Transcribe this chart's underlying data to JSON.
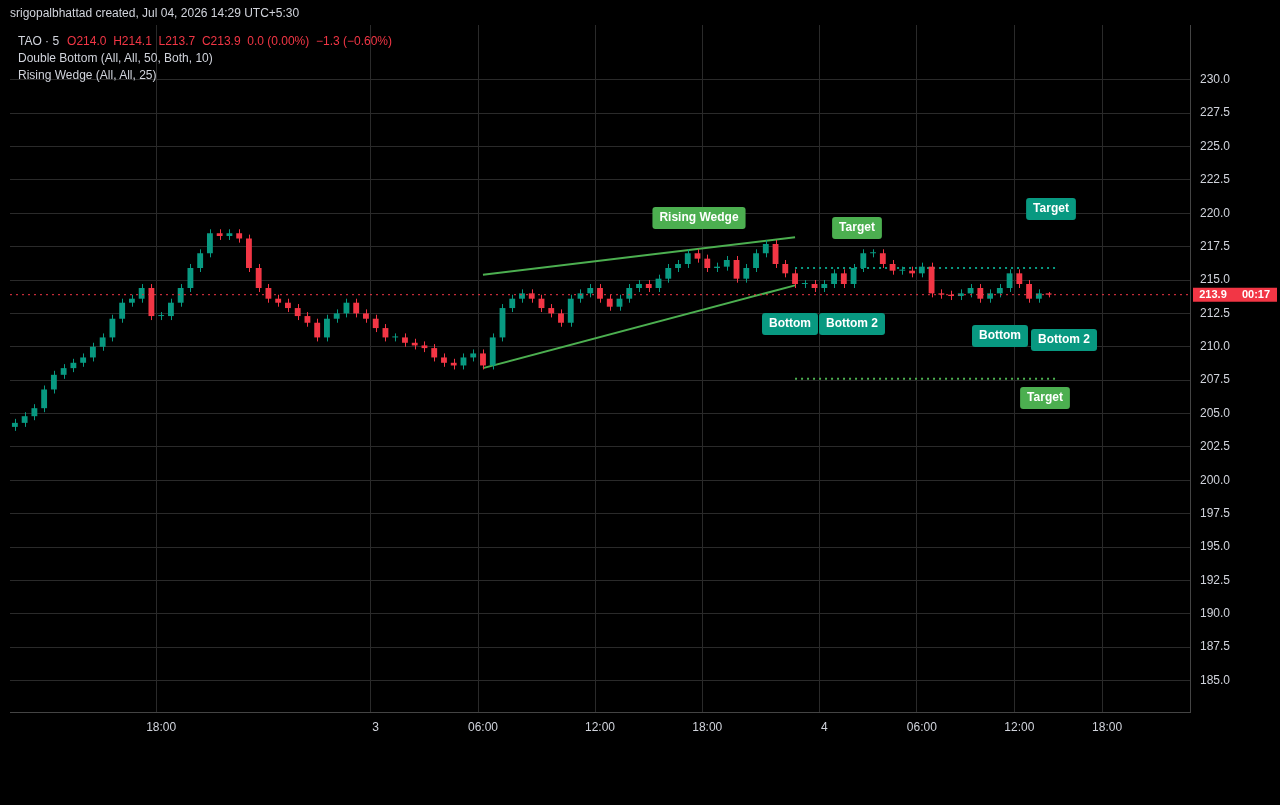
{
  "chart_data": {
    "type": "candlestick",
    "title": "TAO · 5",
    "annotations": [
      "srigopalbhattad created, Jul 04, 2026 14:29 UTC+5:30",
      "O214.0  H214.1  L213.7  C213.9  0.0 (0.00%)  −1.3 (−0.60%)",
      "Double Bottom (All, All, 50, Both, 10)",
      "Rising Wedge (All, All, 25)",
      "Rising Wedge",
      "Target",
      "Target",
      "Target",
      "Bottom",
      "Bottom 2",
      "Bottom",
      "Bottom 2",
      "00:17"
    ],
    "categories": [
      null,
      null,
      null,
      null,
      null,
      null,
      null,
      null,
      null,
      null,
      null,
      null,
      null,
      null,
      null,
      "18:00",
      null,
      null,
      null,
      null,
      null,
      null,
      null,
      null,
      null,
      null,
      null,
      null,
      null,
      null,
      null,
      null,
      null,
      null,
      null,
      null,
      null,
      "3",
      null,
      null,
      null,
      null,
      null,
      null,
      null,
      null,
      null,
      null,
      "06:00",
      null,
      null,
      null,
      null,
      null,
      null,
      null,
      null,
      null,
      null,
      null,
      "12:00",
      null,
      null,
      null,
      null,
      null,
      null,
      null,
      null,
      null,
      null,
      "18:00",
      null,
      null,
      null,
      null,
      null,
      null,
      null,
      null,
      null,
      null,
      null,
      "4",
      null,
      null,
      null,
      null,
      null,
      null,
      null,
      null,
      null,
      "06:00",
      null,
      null,
      null,
      null,
      null,
      null,
      null,
      null,
      null,
      "12:00",
      null,
      null,
      null,
      null,
      null,
      null,
      null,
      null,
      "18:00",
      null,
      null,
      null,
      null,
      null,
      null,
      null,
      null
    ],
    "ohlc": [
      [
        204.0,
        204.6,
        203.7,
        204.3
      ],
      [
        204.3,
        205.1,
        204.0,
        204.8
      ],
      [
        204.8,
        205.7,
        204.5,
        205.4
      ],
      [
        205.4,
        207.1,
        205.1,
        206.8
      ],
      [
        206.8,
        208.2,
        206.5,
        207.9
      ],
      [
        207.9,
        208.7,
        207.6,
        208.4
      ],
      [
        208.4,
        209.1,
        208.1,
        208.8
      ],
      [
        208.8,
        209.5,
        208.5,
        209.2
      ],
      [
        209.2,
        210.3,
        208.9,
        210.0
      ],
      [
        210.0,
        211.0,
        209.7,
        210.7
      ],
      [
        210.7,
        212.4,
        210.4,
        212.1
      ],
      [
        212.1,
        213.6,
        211.8,
        213.3
      ],
      [
        213.3,
        213.9,
        213.0,
        213.6
      ],
      [
        213.6,
        214.7,
        213.3,
        214.4
      ],
      [
        214.4,
        214.7,
        212.0,
        212.3
      ],
      [
        212.3,
        212.6,
        212.0,
        212.3
      ],
      [
        212.3,
        213.6,
        212.0,
        213.3
      ],
      [
        213.3,
        214.7,
        213.0,
        214.4
      ],
      [
        214.4,
        216.2,
        214.1,
        215.9
      ],
      [
        215.9,
        217.3,
        215.6,
        217.0
      ],
      [
        217.0,
        218.8,
        216.7,
        218.5
      ],
      [
        218.5,
        218.8,
        218.0,
        218.3
      ],
      [
        218.3,
        218.8,
        218.0,
        218.5
      ],
      [
        218.5,
        218.8,
        217.8,
        218.1
      ],
      [
        218.1,
        218.4,
        215.6,
        215.9
      ],
      [
        215.9,
        216.2,
        214.1,
        214.4
      ],
      [
        214.4,
        214.7,
        213.3,
        213.6
      ],
      [
        213.6,
        213.9,
        213.0,
        213.3
      ],
      [
        213.3,
        213.6,
        212.6,
        212.9
      ],
      [
        212.9,
        213.2,
        212.0,
        212.3
      ],
      [
        212.3,
        212.6,
        211.5,
        211.8
      ],
      [
        211.8,
        212.1,
        210.4,
        210.7
      ],
      [
        210.7,
        212.4,
        210.4,
        212.1
      ],
      [
        212.1,
        212.8,
        211.8,
        212.5
      ],
      [
        212.5,
        213.6,
        212.2,
        213.3
      ],
      [
        213.3,
        213.6,
        212.2,
        212.5
      ],
      [
        212.5,
        212.8,
        211.8,
        212.1
      ],
      [
        212.1,
        212.4,
        211.1,
        211.4
      ],
      [
        211.4,
        211.7,
        210.4,
        210.7
      ],
      [
        210.7,
        211.0,
        210.4,
        210.7
      ],
      [
        210.7,
        211.0,
        210.0,
        210.3
      ],
      [
        210.3,
        210.6,
        209.8,
        210.1
      ],
      [
        210.1,
        210.4,
        209.6,
        209.9
      ],
      [
        209.9,
        210.2,
        208.9,
        209.2
      ],
      [
        209.2,
        209.5,
        208.5,
        208.8
      ],
      [
        208.8,
        209.1,
        208.3,
        208.6
      ],
      [
        208.6,
        209.5,
        208.3,
        209.2
      ],
      [
        209.2,
        209.8,
        208.9,
        209.5
      ],
      [
        209.5,
        209.8,
        208.3,
        208.6
      ],
      [
        208.6,
        211.0,
        208.3,
        210.7
      ],
      [
        210.7,
        213.2,
        210.4,
        212.9
      ],
      [
        212.9,
        213.9,
        212.6,
        213.6
      ],
      [
        213.6,
        214.3,
        213.3,
        214.0
      ],
      [
        214.0,
        214.3,
        213.3,
        213.6
      ],
      [
        213.6,
        213.9,
        212.6,
        212.9
      ],
      [
        212.9,
        213.2,
        212.2,
        212.5
      ],
      [
        212.5,
        212.8,
        211.5,
        211.8
      ],
      [
        211.8,
        213.9,
        211.5,
        213.6
      ],
      [
        213.6,
        214.3,
        213.3,
        214.0
      ],
      [
        214.0,
        214.7,
        213.7,
        214.4
      ],
      [
        214.4,
        214.7,
        213.3,
        213.6
      ],
      [
        213.6,
        213.9,
        212.7,
        213.0
      ],
      [
        213.0,
        213.9,
        212.7,
        213.6
      ],
      [
        213.6,
        214.7,
        213.3,
        214.4
      ],
      [
        214.4,
        215.0,
        214.1,
        214.7
      ],
      [
        214.7,
        215.0,
        214.1,
        214.4
      ],
      [
        214.4,
        215.4,
        214.1,
        215.1
      ],
      [
        215.1,
        216.2,
        214.8,
        215.9
      ],
      [
        215.9,
        216.5,
        215.6,
        216.2
      ],
      [
        216.2,
        217.3,
        215.9,
        217.0
      ],
      [
        217.0,
        217.3,
        216.3,
        216.6
      ],
      [
        216.6,
        216.9,
        215.6,
        215.9
      ],
      [
        215.9,
        216.3,
        215.6,
        216.0
      ],
      [
        216.0,
        216.8,
        215.7,
        216.5
      ],
      [
        216.5,
        216.8,
        214.8,
        215.1
      ],
      [
        215.1,
        216.2,
        214.8,
        215.9
      ],
      [
        215.9,
        217.3,
        215.6,
        217.0
      ],
      [
        217.0,
        218.0,
        216.7,
        217.7
      ],
      [
        217.7,
        218.0,
        215.9,
        216.2
      ],
      [
        216.2,
        216.5,
        215.2,
        215.5
      ],
      [
        215.5,
        215.8,
        214.4,
        214.7
      ],
      [
        214.7,
        215.0,
        214.4,
        214.7
      ],
      [
        214.7,
        215.0,
        214.1,
        214.4
      ],
      [
        214.4,
        215.0,
        214.1,
        214.7
      ],
      [
        214.7,
        215.8,
        214.4,
        215.5
      ],
      [
        215.5,
        215.8,
        214.4,
        214.7
      ],
      [
        214.7,
        216.2,
        214.4,
        215.9
      ],
      [
        215.9,
        217.3,
        215.6,
        217.0
      ],
      [
        217.0,
        217.3,
        216.7,
        217.0
      ],
      [
        217.0,
        217.3,
        215.9,
        216.2
      ],
      [
        216.2,
        216.5,
        215.4,
        215.7
      ],
      [
        215.7,
        216.0,
        215.4,
        215.7
      ],
      [
        215.7,
        216.0,
        215.2,
        215.5
      ],
      [
        215.5,
        216.3,
        215.2,
        216.0
      ],
      [
        216.0,
        216.3,
        213.7,
        214.0
      ],
      [
        214.0,
        214.3,
        213.6,
        213.9
      ],
      [
        213.9,
        214.2,
        213.5,
        213.8
      ],
      [
        213.8,
        214.3,
        213.5,
        214.0
      ],
      [
        214.0,
        214.7,
        213.7,
        214.4
      ],
      [
        214.4,
        214.7,
        213.3,
        213.6
      ],
      [
        213.6,
        214.3,
        213.3,
        214.0
      ],
      [
        214.0,
        214.7,
        213.7,
        214.4
      ],
      [
        214.4,
        215.8,
        214.1,
        215.5
      ],
      [
        215.5,
        215.8,
        214.4,
        214.7
      ],
      [
        214.7,
        215.0,
        213.3,
        213.6
      ],
      [
        213.6,
        214.3,
        213.3,
        214.0
      ],
      [
        214.0,
        214.1,
        213.7,
        213.9
      ],
      null,
      null,
      null,
      null,
      null,
      null,
      null,
      null,
      null,
      null,
      null,
      null,
      null,
      null
    ],
    "colors": [
      "#089981",
      "#089981",
      "#089981",
      "#089981",
      "#089981",
      "#089981",
      "#089981",
      "#089981",
      "#089981",
      "#089981",
      "#089981",
      "#089981",
      "#089981",
      "#089981",
      "#f23645",
      "#089981",
      "#089981",
      "#089981",
      "#089981",
      "#089981",
      "#089981",
      "#f23645",
      "#089981",
      "#f23645",
      "#f23645",
      "#f23645",
      "#f23645",
      "#f23645",
      "#f23645",
      "#f23645",
      "#f23645",
      "#f23645",
      "#089981",
      "#089981",
      "#089981",
      "#f23645",
      "#f23645",
      "#f23645",
      "#f23645",
      "#089981",
      "#f23645",
      "#f23645",
      "#f23645",
      "#f23645",
      "#f23645",
      "#f23645",
      "#089981",
      "#089981",
      "#f23645",
      "#089981",
      "#089981",
      "#089981",
      "#089981",
      "#f23645",
      "#f23645",
      "#f23645",
      "#f23645",
      "#089981",
      "#089981",
      "#089981",
      "#f23645",
      "#f23645",
      "#089981",
      "#089981",
      "#089981",
      "#f23645",
      "#089981",
      "#089981",
      "#089981",
      "#089981",
      "#f23645",
      "#f23645",
      "#089981",
      "#089981",
      "#f23645",
      "#089981",
      "#089981",
      "#089981",
      "#f23645",
      "#f23645",
      "#f23645",
      "#089981",
      "#f23645",
      "#089981",
      "#089981",
      "#f23645",
      "#089981",
      "#089981",
      "#089981",
      "#f23645",
      "#f23645",
      "#089981",
      "#f23645",
      "#089981",
      "#f23645",
      "#f23645",
      "#f23645",
      "#089981",
      "#089981",
      "#f23645",
      "#089981",
      "#089981",
      "#089981",
      "#f23645",
      "#f23645",
      "#089981",
      "#f23645",
      null,
      null,
      null,
      null,
      null,
      null,
      null,
      null,
      null,
      null,
      null,
      null,
      null,
      null
    ],
    "series": [
      {
        "type": "line",
        "color": "#4caf50",
        "line_style": "solid",
        "values": [
          null,
          null,
          null,
          null,
          null,
          null,
          null,
          null,
          null,
          null,
          null,
          null,
          null,
          null,
          null,
          null,
          null,
          null,
          null,
          null,
          null,
          null,
          null,
          null,
          null,
          null,
          null,
          null,
          null,
          null,
          null,
          null,
          null,
          null,
          null,
          null,
          null,
          null,
          null,
          null,
          null,
          null,
          null,
          null,
          null,
          null,
          null,
          null,
          215.4,
          null,
          null,
          null,
          null,
          null,
          null,
          null,
          null,
          null,
          null,
          null,
          null,
          null,
          null,
          null,
          null,
          null,
          null,
          null,
          null,
          null,
          null,
          null,
          null,
          null,
          null,
          null,
          null,
          null,
          null,
          null,
          218.2,
          null,
          null,
          null,
          null,
          null,
          null,
          null,
          null,
          null,
          null,
          null,
          null,
          null,
          null,
          null,
          null,
          null,
          null,
          null,
          null,
          null,
          null,
          null,
          null,
          null,
          null,
          null,
          null,
          null,
          null,
          null,
          null,
          null,
          null,
          null,
          null,
          null,
          null,
          null,
          null
        ]
      },
      {
        "type": "line",
        "color": "#4caf50",
        "line_style": "solid",
        "values": [
          null,
          null,
          null,
          null,
          null,
          null,
          null,
          null,
          null,
          null,
          null,
          null,
          null,
          null,
          null,
          null,
          null,
          null,
          null,
          null,
          null,
          null,
          null,
          null,
          null,
          null,
          null,
          null,
          null,
          null,
          null,
          null,
          null,
          null,
          null,
          null,
          null,
          null,
          null,
          null,
          null,
          null,
          null,
          null,
          null,
          null,
          null,
          null,
          208.4,
          null,
          null,
          null,
          null,
          null,
          null,
          null,
          null,
          null,
          null,
          null,
          null,
          null,
          null,
          null,
          null,
          null,
          null,
          null,
          null,
          null,
          null,
          null,
          null,
          null,
          null,
          null,
          null,
          null,
          null,
          null,
          214.6,
          null,
          null,
          null,
          null,
          null,
          null,
          null,
          null,
          null,
          null,
          null,
          null,
          null,
          null,
          null,
          null,
          null,
          null,
          null,
          null,
          null,
          null,
          null,
          null,
          null,
          null,
          null,
          null,
          null,
          null,
          null,
          null,
          null,
          null,
          null,
          null,
          null,
          null,
          null,
          null
        ]
      },
      {
        "type": "line",
        "color": "#4caf50",
        "line_style": "dotted",
        "values": [
          null,
          null,
          null,
          null,
          null,
          null,
          null,
          null,
          null,
          null,
          null,
          null,
          null,
          null,
          null,
          null,
          null,
          null,
          null,
          null,
          null,
          null,
          null,
          null,
          null,
          null,
          null,
          null,
          null,
          null,
          null,
          null,
          null,
          null,
          null,
          null,
          null,
          null,
          null,
          null,
          null,
          null,
          null,
          null,
          null,
          null,
          null,
          null,
          null,
          null,
          null,
          null,
          null,
          null,
          null,
          null,
          null,
          null,
          null,
          null,
          null,
          null,
          null,
          null,
          null,
          null,
          null,
          null,
          null,
          null,
          null,
          null,
          null,
          null,
          null,
          null,
          null,
          null,
          null,
          null,
          207.6,
          null,
          null,
          null,
          null,
          null,
          null,
          null,
          null,
          null,
          null,
          null,
          null,
          null,
          null,
          null,
          null,
          null,
          null,
          null,
          null,
          null,
          null,
          null,
          null,
          null,
          null,
          207.6,
          null,
          null,
          null,
          null,
          null,
          null,
          null,
          null,
          null,
          null,
          null,
          null,
          null
        ]
      },
      {
        "type": "line",
        "color": "#089981",
        "line_style": "dotted",
        "values": [
          null,
          null,
          null,
          null,
          null,
          null,
          null,
          null,
          null,
          null,
          null,
          null,
          null,
          null,
          null,
          null,
          null,
          null,
          null,
          null,
          null,
          null,
          null,
          null,
          null,
          null,
          null,
          null,
          null,
          null,
          null,
          null,
          null,
          null,
          null,
          null,
          null,
          null,
          null,
          null,
          null,
          null,
          null,
          null,
          null,
          null,
          null,
          null,
          null,
          null,
          null,
          null,
          null,
          null,
          null,
          null,
          null,
          null,
          null,
          null,
          null,
          null,
          null,
          null,
          null,
          null,
          null,
          null,
          null,
          null,
          null,
          null,
          null,
          null,
          null,
          null,
          null,
          null,
          null,
          null,
          215.9,
          null,
          null,
          null,
          null,
          null,
          null,
          null,
          null,
          null,
          null,
          null,
          null,
          null,
          null,
          null,
          null,
          null,
          null,
          null,
          null,
          null,
          null,
          null,
          null,
          null,
          null,
          215.9,
          null,
          null,
          null,
          null,
          null,
          null,
          null,
          null,
          null,
          null,
          null,
          null,
          null
        ]
      }
    ],
    "ref_lines": [
      {
        "axis": "y",
        "value": 213.9,
        "label": "213.9",
        "color": "#f23645",
        "line_style": "dotted"
      }
    ],
    "ylim": [
      182.6,
      234.1
    ],
    "yticks": [
      {
        "value": 185,
        "label": "185.0"
      },
      {
        "value": 187.5,
        "label": "187.5"
      },
      {
        "value": 190,
        "label": "190.0"
      },
      {
        "value": 192.5,
        "label": "192.5"
      },
      {
        "value": 195,
        "label": "195.0"
      },
      {
        "value": 197.5,
        "label": "197.5"
      },
      {
        "value": 200,
        "label": "200.0"
      },
      {
        "value": 202.5,
        "label": "202.5"
      },
      {
        "value": 205,
        "label": "205.0"
      },
      {
        "value": 207.5,
        "label": "207.5"
      },
      {
        "value": 210,
        "label": "210.0"
      },
      {
        "value": 212.5,
        "label": "212.5"
      },
      {
        "value": 215,
        "label": "215.0"
      },
      {
        "value": 217.5,
        "label": "217.5"
      },
      {
        "value": 220,
        "label": "220.0"
      },
      {
        "value": 222.5,
        "label": "222.5"
      },
      {
        "value": 225,
        "label": "225.0"
      },
      {
        "value": 227.5,
        "label": "227.5"
      },
      {
        "value": 230,
        "label": "230.0"
      }
    ],
    "grid": true
  }
}
